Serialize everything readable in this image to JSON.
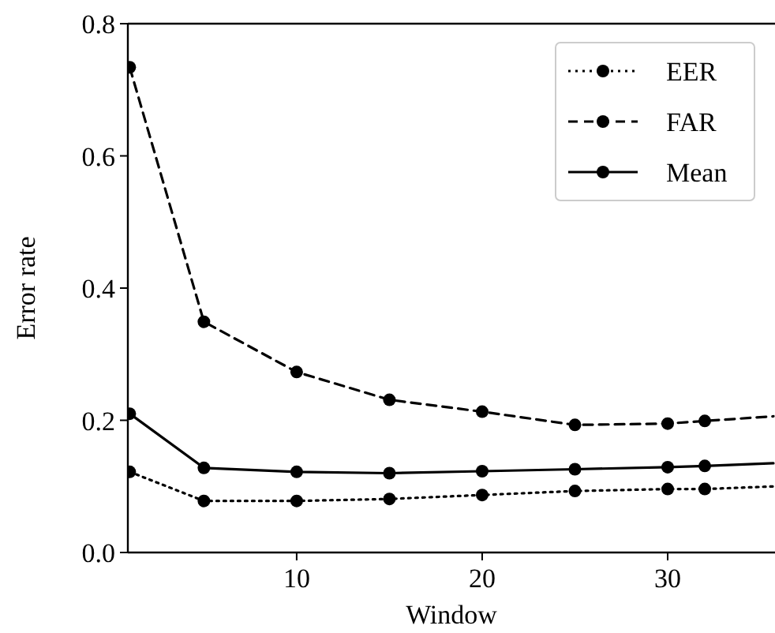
{
  "chart_data": {
    "type": "line",
    "xlabel": "Window",
    "ylabel": "Error rate",
    "x": [
      1,
      5,
      10,
      15,
      20,
      25,
      30,
      32,
      35.7
    ],
    "series": [
      {
        "name": "EER",
        "color": "#000000",
        "line_style": "dotted",
        "values": [
          0.122,
          0.078,
          0.078,
          0.081,
          0.087,
          0.093,
          0.096,
          0.096,
          0.1
        ]
      },
      {
        "name": "FAR",
        "color": "#000000",
        "line_style": "dashed",
        "values": [
          0.734,
          0.349,
          0.273,
          0.231,
          0.213,
          0.193,
          0.195,
          0.199,
          0.206
        ]
      },
      {
        "name": "Mean",
        "color": "#000000",
        "line_style": "solid",
        "values": [
          0.21,
          0.128,
          0.122,
          0.12,
          0.123,
          0.126,
          0.129,
          0.131,
          0.135
        ]
      }
    ],
    "marker": "circle",
    "legend": "top right",
    "grid": false,
    "xlim": [
      0.9,
      35.7
    ],
    "xticks": [
      10,
      20,
      30
    ],
    "ylim": [
      0,
      0.8
    ],
    "yticks": [
      {
        "value": 0,
        "label": "0.0"
      },
      {
        "value": 0.2,
        "label": "0.2"
      },
      {
        "value": 0.4,
        "label": "0.4"
      },
      {
        "value": 0.6,
        "label": "0.6"
      },
      {
        "value": 0.8,
        "label": "0.8"
      }
    ]
  }
}
